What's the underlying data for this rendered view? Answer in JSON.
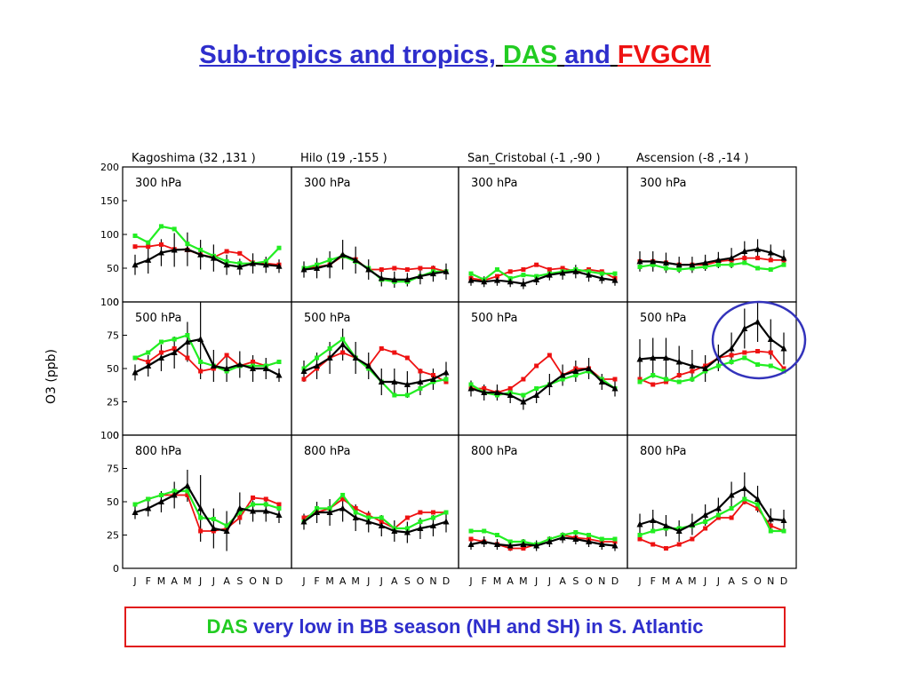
{
  "title": {
    "part1": "Sub-tropics and tropics,",
    "part2": "DAS",
    "part3": "and",
    "part4": "FVGCM",
    "colors": {
      "main": "#2e2ecc",
      "das": "#22cc22",
      "fvgcm": "#ee1111"
    }
  },
  "caption": {
    "das": "DAS",
    "rest": "very low in BB season (NH and SH) in S. Atlantic",
    "colors": {
      "das": "#22cc22",
      "rest": "#2e2ecc",
      "border": "#e11b1b"
    }
  },
  "highlight": {
    "target": "Ascension 500 hPa",
    "color": "#3333bb"
  },
  "chart_data": {
    "type": "line",
    "ylabel": "O3 (ppb)",
    "months": [
      "J",
      "F",
      "M",
      "A",
      "M",
      "J",
      "J",
      "A",
      "S",
      "O",
      "N",
      "D"
    ],
    "series_colors": {
      "obs": "#000000",
      "das": "#22ee22",
      "fvgcm": "#ee1111"
    },
    "stations": [
      "Kagoshima (32 ,131 )",
      "Hilo (19 ,-155 )",
      "San_Cristobal (-1 ,-90 )",
      "Ascension (-8 ,-14 )"
    ],
    "rows": [
      {
        "level": "300 hPa",
        "ylim": [
          0,
          200
        ],
        "yticks": [
          0,
          50,
          100,
          150,
          200
        ],
        "panels": [
          {
            "obs": [
              55,
              62,
              73,
              77,
              78,
              70,
              65,
              55,
              52,
              57,
              55,
              53
            ],
            "obs_err": [
              15,
              20,
              20,
              25,
              25,
              22,
              20,
              15,
              12,
              15,
              12,
              10
            ],
            "das": [
              98,
              88,
              112,
              108,
              86,
              77,
              68,
              60,
              57,
              57,
              60,
              80
            ],
            "fvgcm": [
              82,
              82,
              85,
              78,
              77,
              70,
              66,
              75,
              72,
              58,
              57,
              55
            ]
          },
          {
            "obs": [
              48,
              50,
              55,
              70,
              62,
              48,
              35,
              33,
              33,
              38,
              42,
              45
            ],
            "obs_err": [
              12,
              15,
              20,
              22,
              20,
              15,
              12,
              12,
              10,
              12,
              12,
              12
            ],
            "das": [
              50,
              55,
              62,
              68,
              60,
              50,
              33,
              30,
              30,
              38,
              45,
              45
            ],
            "fvgcm": [
              50,
              52,
              55,
              68,
              63,
              48,
              48,
              50,
              48,
              50,
              50,
              45
            ]
          },
          {
            "obs": [
              32,
              30,
              32,
              30,
              27,
              33,
              40,
              43,
              45,
              40,
              35,
              32
            ],
            "obs_err": [
              8,
              8,
              8,
              8,
              8,
              8,
              8,
              10,
              10,
              10,
              8,
              8
            ],
            "das": [
              42,
              33,
              48,
              35,
              40,
              38,
              42,
              45,
              48,
              45,
              42,
              42
            ],
            "fvgcm": [
              35,
              32,
              38,
              45,
              48,
              55,
              48,
              50,
              45,
              48,
              45,
              35
            ]
          },
          {
            "obs": [
              60,
              60,
              58,
              55,
              55,
              58,
              62,
              65,
              75,
              78,
              73,
              65
            ],
            "obs_err": [
              15,
              15,
              15,
              12,
              12,
              12,
              12,
              15,
              15,
              15,
              12,
              12
            ],
            "das": [
              52,
              55,
              50,
              48,
              50,
              52,
              55,
              55,
              58,
              50,
              48,
              55
            ],
            "fvgcm": [
              60,
              60,
              58,
              55,
              55,
              55,
              60,
              62,
              65,
              65,
              62,
              62
            ]
          }
        ]
      },
      {
        "level": "500 hPa",
        "ylim": [
          0,
          100
        ],
        "yticks": [
          0,
          25,
          50,
          75,
          100
        ],
        "panels": [
          {
            "obs": [
              47,
              52,
              58,
              62,
              70,
              72,
              52,
              50,
              53,
              50,
              50,
              45
            ],
            "obs_err": [
              6,
              8,
              10,
              12,
              15,
              30,
              12,
              10,
              10,
              10,
              8,
              5
            ],
            "das": [
              58,
              62,
              70,
              72,
              75,
              55,
              52,
              48,
              52,
              52,
              52,
              55
            ],
            "fvgcm": [
              58,
              55,
              62,
              65,
              58,
              48,
              50,
              60,
              52,
              55,
              52,
              55
            ]
          },
          {
            "obs": [
              48,
              52,
              58,
              68,
              58,
              52,
              40,
              40,
              38,
              40,
              42,
              47
            ],
            "obs_err": [
              8,
              10,
              12,
              12,
              12,
              10,
              10,
              10,
              10,
              10,
              8,
              8
            ],
            "das": [
              50,
              58,
              65,
              72,
              58,
              50,
              40,
              30,
              30,
              35,
              40,
              42
            ],
            "fvgcm": [
              42,
              50,
              58,
              62,
              58,
              52,
              65,
              62,
              58,
              48,
              45,
              40
            ]
          },
          {
            "obs": [
              35,
              32,
              32,
              30,
              25,
              30,
              38,
              45,
              48,
              50,
              40,
              35
            ],
            "obs_err": [
              6,
              6,
              6,
              6,
              6,
              6,
              8,
              8,
              8,
              8,
              6,
              6
            ],
            "das": [
              38,
              32,
              30,
              32,
              30,
              35,
              38,
              42,
              45,
              48,
              42,
              35
            ],
            "fvgcm": [
              35,
              35,
              32,
              35,
              42,
              52,
              60,
              45,
              50,
              50,
              42,
              42
            ]
          },
          {
            "obs": [
              57,
              58,
              58,
              55,
              52,
              50,
              58,
              65,
              80,
              85,
              72,
              65
            ],
            "obs_err": [
              15,
              15,
              15,
              12,
              12,
              10,
              10,
              12,
              15,
              15,
              15,
              12
            ],
            "das": [
              40,
              45,
              42,
              40,
              42,
              48,
              52,
              55,
              58,
              53,
              52,
              48
            ],
            "fvgcm": [
              42,
              38,
              40,
              45,
              48,
              52,
              58,
              60,
              62,
              63,
              62,
              50
            ]
          }
        ]
      },
      {
        "level": "800 hPa",
        "ylim": [
          0,
          100
        ],
        "yticks": [
          0,
          25,
          50,
          75,
          100
        ],
        "panels": [
          {
            "obs": [
              42,
              45,
              50,
              55,
              62,
              45,
              30,
              28,
              45,
              43,
              43,
              40
            ],
            "obs_err": [
              5,
              6,
              8,
              10,
              12,
              25,
              15,
              15,
              12,
              8,
              8,
              6
            ],
            "das": [
              48,
              52,
              55,
              58,
              58,
              38,
              37,
              32,
              42,
              48,
              48,
              45
            ],
            "fvgcm": [
              48,
              52,
              55,
              55,
              55,
              28,
              28,
              30,
              38,
              53,
              52,
              48
            ]
          },
          {
            "obs": [
              35,
              42,
              42,
              45,
              38,
              35,
              32,
              28,
              27,
              30,
              32,
              35
            ],
            "obs_err": [
              6,
              8,
              10,
              10,
              10,
              8,
              8,
              8,
              8,
              8,
              8,
              8
            ],
            "das": [
              35,
              45,
              45,
              55,
              42,
              38,
              38,
              30,
              30,
              35,
              38,
              42
            ],
            "fvgcm": [
              38,
              42,
              45,
              52,
              45,
              40,
              35,
              30,
              38,
              42,
              42,
              42
            ]
          },
          {
            "obs": [
              18,
              20,
              18,
              17,
              18,
              17,
              20,
              23,
              22,
              20,
              18,
              17
            ],
            "obs_err": [
              4,
              4,
              4,
              4,
              4,
              4,
              4,
              4,
              4,
              4,
              4,
              4
            ],
            "das": [
              28,
              28,
              25,
              20,
              20,
              18,
              22,
              25,
              27,
              25,
              22,
              22
            ],
            "fvgcm": [
              22,
              20,
              18,
              15,
              15,
              18,
              22,
              25,
              23,
              22,
              20,
              20
            ]
          },
          {
            "obs": [
              33,
              36,
              32,
              28,
              33,
              40,
              45,
              55,
              60,
              52,
              37,
              36
            ],
            "obs_err": [
              8,
              8,
              8,
              8,
              8,
              8,
              8,
              10,
              12,
              10,
              8,
              8
            ],
            "das": [
              25,
              28,
              30,
              30,
              32,
              35,
              40,
              45,
              52,
              48,
              28,
              28
            ],
            "fvgcm": [
              22,
              18,
              15,
              18,
              22,
              30,
              38,
              38,
              50,
              45,
              32,
              28
            ]
          }
        ]
      }
    ]
  }
}
